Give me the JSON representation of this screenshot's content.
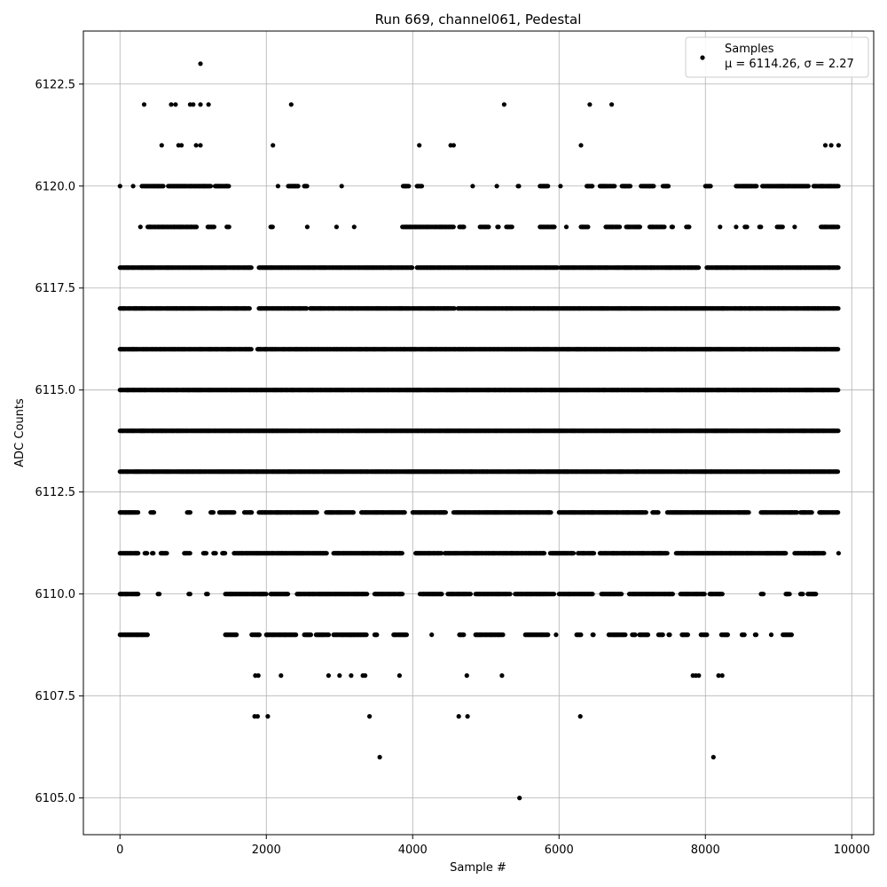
{
  "chart_data": {
    "type": "scatter",
    "title": "Run 669, channel061, Pedestal",
    "xlabel": "Sample #",
    "ylabel": "ADC Counts",
    "xlim": [
      -500,
      10300
    ],
    "ylim": [
      6104.1,
      6123.8
    ],
    "xticks": [
      0,
      2000,
      4000,
      6000,
      8000,
      10000
    ],
    "xtick_labels": [
      "0",
      "2000",
      "4000",
      "6000",
      "8000",
      "10000"
    ],
    "yticks": [
      6105.0,
      6107.5,
      6110.0,
      6112.5,
      6115.0,
      6117.5,
      6120.0,
      6122.5
    ],
    "ytick_labels": [
      "6105.0",
      "6107.5",
      "6110.0",
      "6112.5",
      "6115.0",
      "6117.5",
      "6120.0",
      "6122.5"
    ],
    "grid": true,
    "legend": {
      "placement": "top-right",
      "label": "Samples",
      "stats": "μ = 6114.26, σ = 2.27"
    },
    "marker_color": "#000000",
    "series": [
      {
        "name": "Samples",
        "points": [
          [
            1100,
            6123
          ],
          [
            330,
            6122
          ],
          [
            700,
            6122
          ],
          [
            760,
            6122
          ],
          [
            960,
            6122
          ],
          [
            1000,
            6122
          ],
          [
            1100,
            6122
          ],
          [
            1210,
            6122
          ],
          [
            2340,
            6122
          ],
          [
            5250,
            6122
          ],
          [
            6420,
            6122
          ],
          [
            6720,
            6122
          ],
          [
            570,
            6121
          ],
          [
            800,
            6121
          ],
          [
            840,
            6121
          ],
          [
            1040,
            6121
          ],
          [
            1100,
            6121
          ],
          [
            2090,
            6121
          ],
          [
            4090,
            6121
          ],
          [
            4520,
            6121
          ],
          [
            4560,
            6121
          ],
          [
            6300,
            6121
          ],
          [
            9640,
            6121
          ],
          [
            9720,
            6121
          ],
          [
            9820,
            6121
          ],
          [
            1850,
            6108
          ],
          [
            1890,
            6108
          ],
          [
            2200,
            6108
          ],
          [
            2850,
            6108
          ],
          [
            3000,
            6108
          ],
          [
            3160,
            6108
          ],
          [
            3320,
            6108
          ],
          [
            3350,
            6108
          ],
          [
            3820,
            6108
          ],
          [
            4740,
            6108
          ],
          [
            5220,
            6108
          ],
          [
            7830,
            6108
          ],
          [
            7870,
            6108
          ],
          [
            7910,
            6108
          ],
          [
            8180,
            6108
          ],
          [
            8230,
            6108
          ],
          [
            1840,
            6107
          ],
          [
            1880,
            6107
          ],
          [
            2020,
            6107
          ],
          [
            3410,
            6107
          ],
          [
            4630,
            6107
          ],
          [
            4750,
            6107
          ],
          [
            6290,
            6107
          ],
          [
            3550,
            6106
          ],
          [
            8110,
            6106
          ],
          [
            5460,
            6105
          ]
        ],
        "bands": [
          {
            "y": 6120,
            "x_ranges": [
              [
                0,
                0
              ],
              [
                180,
                180
              ],
              [
                300,
                600
              ],
              [
                660,
                1240
              ],
              [
                1300,
                1500
              ],
              [
                2160,
                2160
              ],
              [
                2300,
                2440
              ],
              [
                2520,
                2560
              ],
              [
                3030,
                3030
              ],
              [
                3870,
                3960
              ],
              [
                4060,
                4130
              ],
              [
                4820,
                4820
              ],
              [
                5150,
                5150
              ],
              [
                5440,
                5460
              ],
              [
                5740,
                5860
              ],
              [
                6020,
                6020
              ],
              [
                6380,
                6460
              ],
              [
                6560,
                6760
              ],
              [
                6860,
                6980
              ],
              [
                7120,
                7300
              ],
              [
                7420,
                7500
              ],
              [
                8000,
                8080
              ],
              [
                8420,
                8700
              ],
              [
                8780,
                9420
              ],
              [
                9480,
                9820
              ]
            ]
          },
          {
            "y": 6119,
            "x_ranges": [
              [
                280,
                280
              ],
              [
                380,
                1060
              ],
              [
                1200,
                1300
              ],
              [
                1460,
                1500
              ],
              [
                2060,
                2100
              ],
              [
                2560,
                2560
              ],
              [
                2960,
                2960
              ],
              [
                3200,
                3200
              ],
              [
                3860,
                4560
              ],
              [
                4640,
                4700
              ],
              [
                4920,
                5040
              ],
              [
                5160,
                5180
              ],
              [
                5280,
                5360
              ],
              [
                5740,
                5940
              ],
              [
                6100,
                6100
              ],
              [
                6300,
                6400
              ],
              [
                6640,
                6840
              ],
              [
                6920,
                7120
              ],
              [
                7240,
                7440
              ],
              [
                7540,
                7560
              ],
              [
                7740,
                7780
              ],
              [
                8200,
                8200
              ],
              [
                8420,
                8420
              ],
              [
                8540,
                8580
              ],
              [
                8740,
                8760
              ],
              [
                8980,
                9060
              ],
              [
                9220,
                9220
              ],
              [
                9580,
                9820
              ]
            ]
          },
          {
            "y": 6118,
            "x_ranges": [
              [
                0,
                1800
              ],
              [
                1900,
                4000
              ],
              [
                4060,
                5980
              ],
              [
                6020,
                7920
              ],
              [
                8020,
                9820
              ]
            ]
          },
          {
            "y": 6117,
            "x_ranges": [
              [
                0,
                1780
              ],
              [
                1900,
                2560
              ],
              [
                2600,
                4580
              ],
              [
                4620,
                9820
              ]
            ]
          },
          {
            "y": 6116,
            "x_ranges": [
              [
                0,
                1800
              ],
              [
                1880,
                9820
              ]
            ]
          },
          {
            "y": 6115,
            "x_ranges": [
              [
                0,
                9820
              ]
            ]
          },
          {
            "y": 6114,
            "x_ranges": [
              [
                0,
                9820
              ]
            ]
          },
          {
            "y": 6113,
            "x_ranges": [
              [
                0,
                9820
              ]
            ]
          },
          {
            "y": 6112,
            "x_ranges": [
              [
                0,
                260
              ],
              [
                420,
                480
              ],
              [
                920,
                960
              ],
              [
                1240,
                1280
              ],
              [
                1360,
                1560
              ],
              [
                1700,
                1800
              ],
              [
                1900,
                2700
              ],
              [
                2820,
                3200
              ],
              [
                3300,
                3900
              ],
              [
                4000,
                4460
              ],
              [
                4560,
                5900
              ],
              [
                6000,
                7200
              ],
              [
                7280,
                7360
              ],
              [
                7480,
                8600
              ],
              [
                8760,
                9260
              ],
              [
                9300,
                9460
              ],
              [
                9560,
                9820
              ]
            ]
          },
          {
            "y": 6111,
            "x_ranges": [
              [
                0,
                260
              ],
              [
                340,
                380
              ],
              [
                440,
                460
              ],
              [
                560,
                640
              ],
              [
                880,
                960
              ],
              [
                1140,
                1180
              ],
              [
                1280,
                1320
              ],
              [
                1400,
                1440
              ],
              [
                1560,
                2840
              ],
              [
                2920,
                3860
              ],
              [
                4040,
                4400
              ],
              [
                4440,
                5800
              ],
              [
                5880,
                6200
              ],
              [
                6260,
                6480
              ],
              [
                6560,
                7480
              ],
              [
                7600,
                9100
              ],
              [
                9220,
                9620
              ],
              [
                9820,
                9820
              ]
            ]
          },
          {
            "y": 6110,
            "x_ranges": [
              [
                0,
                260
              ],
              [
                520,
                540
              ],
              [
                940,
                960
              ],
              [
                1180,
                1200
              ],
              [
                1440,
                2000
              ],
              [
                2060,
                2300
              ],
              [
                2420,
                3380
              ],
              [
                3480,
                3860
              ],
              [
                4100,
                4400
              ],
              [
                4480,
                4800
              ],
              [
                4860,
                5340
              ],
              [
                5400,
                5940
              ],
              [
                6000,
                6460
              ],
              [
                6580,
                6860
              ],
              [
                6960,
                7560
              ],
              [
                7660,
                8000
              ],
              [
                8060,
                8240
              ],
              [
                8760,
                8800
              ],
              [
                9100,
                9160
              ],
              [
                9300,
                9340
              ],
              [
                9400,
                9520
              ]
            ]
          },
          {
            "y": 6109,
            "x_ranges": [
              [
                0,
                380
              ],
              [
                1440,
                1600
              ],
              [
                1800,
                1920
              ],
              [
                2000,
                2420
              ],
              [
                2520,
                2620
              ],
              [
                2680,
                2860
              ],
              [
                2920,
                3380
              ],
              [
                3480,
                3520
              ],
              [
                3740,
                3920
              ],
              [
                4260,
                4260
              ],
              [
                4640,
                4700
              ],
              [
                4860,
                5240
              ],
              [
                5540,
                5860
              ],
              [
                5960,
                5960
              ],
              [
                6240,
                6300
              ],
              [
                6460,
                6480
              ],
              [
                6680,
                6920
              ],
              [
                7000,
                7040
              ],
              [
                7100,
                7220
              ],
              [
                7360,
                7420
              ],
              [
                7500,
                7520
              ],
              [
                7680,
                7760
              ],
              [
                7940,
                8020
              ],
              [
                8220,
                8320
              ],
              [
                8500,
                8540
              ],
              [
                8680,
                8700
              ],
              [
                8900,
                8900
              ],
              [
                9060,
                9180
              ]
            ]
          }
        ]
      }
    ]
  }
}
